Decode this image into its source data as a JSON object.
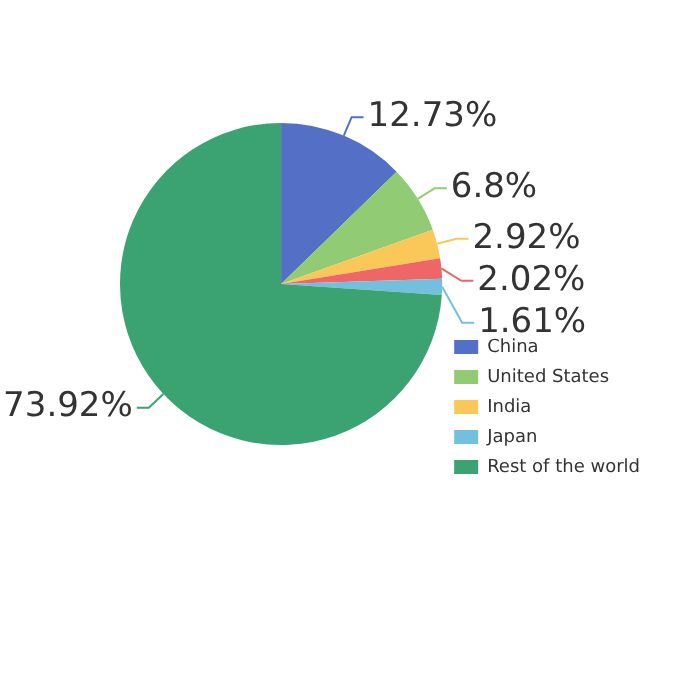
{
  "chart_data": {
    "type": "pie",
    "categories": [
      "China",
      "United States",
      "India",
      null,
      "Japan",
      "Rest of the world"
    ],
    "values": [
      12.73,
      6.8,
      2.92,
      2.02,
      1.61,
      73.92
    ],
    "colors": [
      "#5470c6",
      "#91cc75",
      "#fac858",
      "#ee6666",
      "#73c0de",
      "#3ba272"
    ],
    "value_labels": [
      "12.73%",
      "6.8%",
      "2.92%",
      "2.02%",
      "1.61%",
      "73.92%"
    ],
    "legend": "right"
  }
}
